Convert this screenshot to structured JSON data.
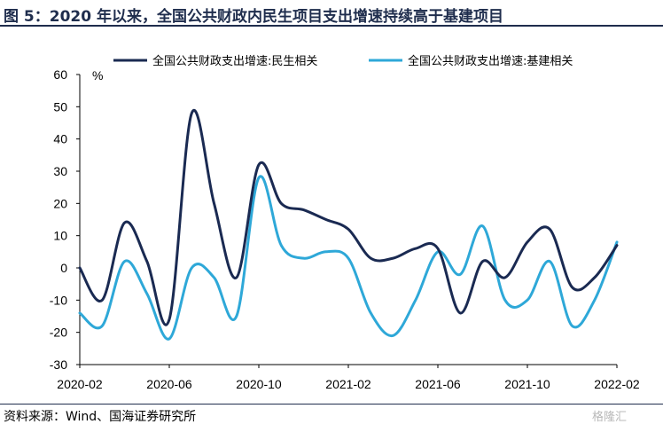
{
  "figure": {
    "title": "图 5：2020 年以来，全国公共财政内民生项目支出增速持续高于基建项目",
    "source": "资料来源：Wind、国海证券研究所",
    "watermark": "格隆汇"
  },
  "chart_data": {
    "type": "line",
    "ylabel": "%",
    "ylim": [
      -30,
      60
    ],
    "yticks": [
      -30,
      -20,
      -10,
      0,
      10,
      20,
      30,
      40,
      50,
      60
    ],
    "x": [
      "2020-02",
      "2020-03",
      "2020-04",
      "2020-05",
      "2020-06",
      "2020-07",
      "2020-08",
      "2020-09",
      "2020-10",
      "2020-11",
      "2020-12",
      "2021-01",
      "2021-02",
      "2021-03",
      "2021-04",
      "2021-05",
      "2021-06",
      "2021-07",
      "2021-08",
      "2021-09",
      "2021-10",
      "2021-11",
      "2021-12",
      "2022-01",
      "2022-02"
    ],
    "xtick_labels": [
      "2020-02",
      "2020-06",
      "2020-10",
      "2021-02",
      "2021-06",
      "2021-10",
      "2022-02"
    ],
    "grid": false,
    "legend_position": "top",
    "series": [
      {
        "name": "全国公共财政支出增速:民生相关",
        "color": "#1a2a52",
        "values": [
          0,
          -10,
          14,
          2,
          -16,
          48,
          20,
          -3,
          32,
          20,
          18,
          15,
          12,
          3,
          3,
          6,
          6,
          -14,
          2,
          -3,
          8,
          12,
          -6,
          -3,
          7
        ]
      },
      {
        "name": "全国公共财政支出增速:基建相关",
        "color": "#2ea8d8",
        "values": [
          -14,
          -18,
          2,
          -8,
          -22,
          0,
          -3,
          -15,
          28,
          7,
          3,
          5,
          3,
          -14,
          -21,
          -10,
          5,
          -2,
          13,
          -10,
          -10,
          2,
          -18,
          -10,
          8
        ]
      }
    ]
  }
}
